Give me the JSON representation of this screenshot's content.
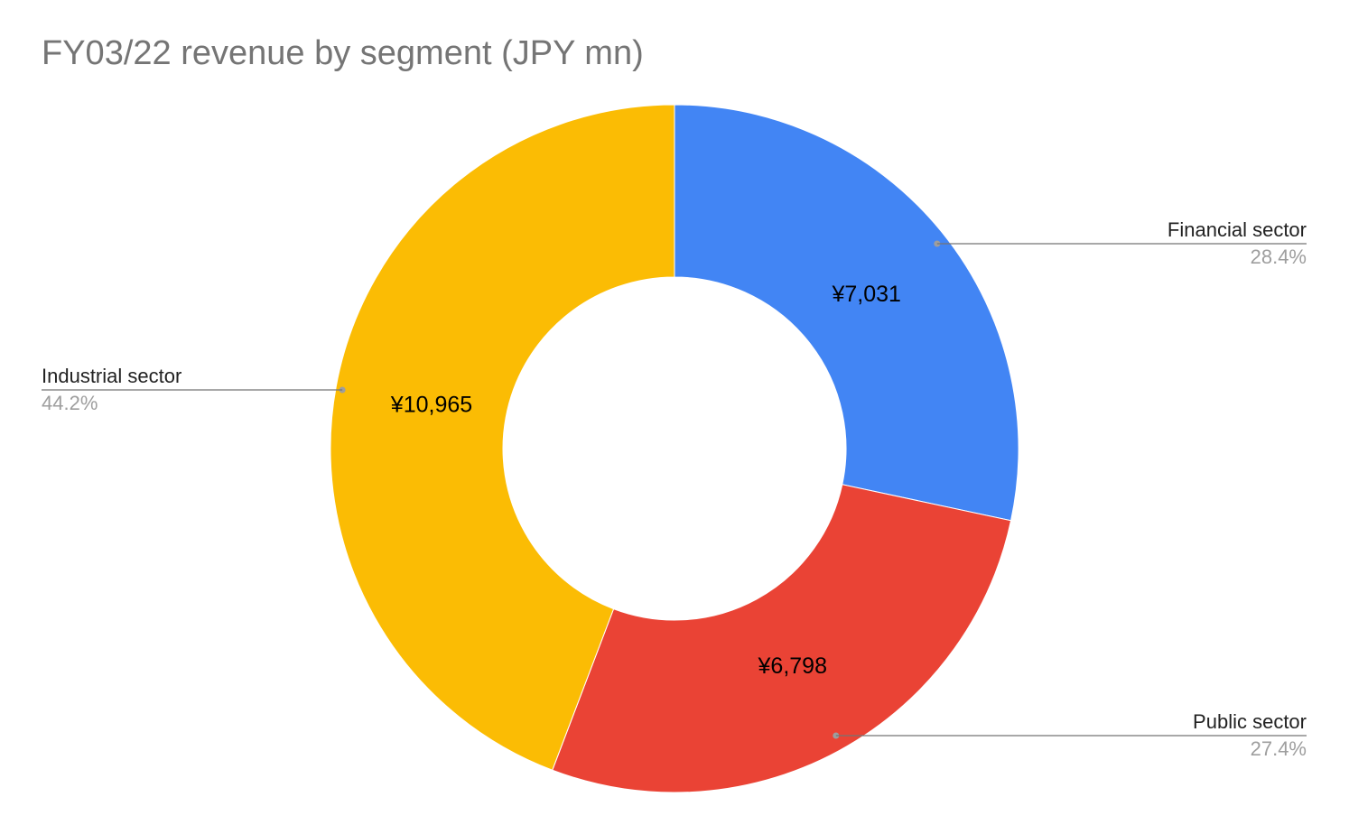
{
  "chart_data": {
    "type": "pie",
    "title": "FY03/22 revenue by segment (JPY mn)",
    "donut": true,
    "slices": [
      {
        "label": "Financial sector",
        "value": 7031,
        "value_label": "¥7,031",
        "percent_label": "28.4%",
        "color": "#4285F4"
      },
      {
        "label": "Public sector",
        "value": 6798,
        "value_label": "¥6,798",
        "percent_label": "27.4%",
        "color": "#EA4335"
      },
      {
        "label": "Industrial sector",
        "value": 10965,
        "value_label": "¥10,965",
        "percent_label": "44.2%",
        "color": "#FBBC04"
      }
    ]
  }
}
